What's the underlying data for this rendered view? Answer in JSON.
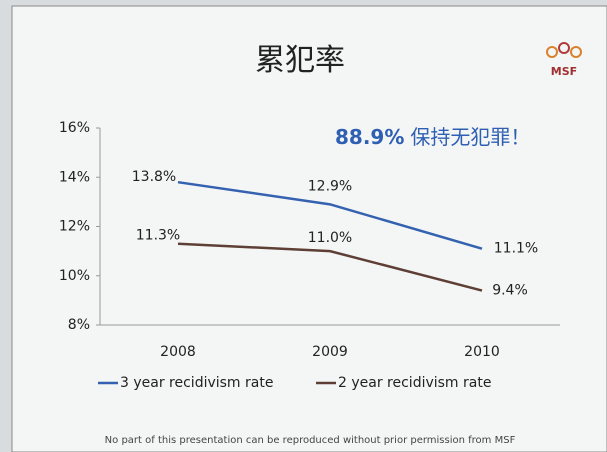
{
  "chart_data": {
    "type": "line",
    "title": "累犯率",
    "annotation": {
      "highlight": "88.9%",
      "text": "保持无犯罪！"
    },
    "logo": "MSF",
    "footer": "No part of this presentation can be reproduced without prior permission from MSF",
    "categories": [
      "2008",
      "2009",
      "2010"
    ],
    "series": [
      {
        "name": "3 year recidivism rate",
        "color": "#3462b0",
        "values": [
          13.8,
          12.9,
          11.1
        ],
        "value_labels": [
          "13.8%",
          "12.9%",
          "11.1%"
        ]
      },
      {
        "name": "2 year recidivism rate",
        "color": "#5e3f35",
        "values": [
          11.3,
          11.0,
          9.4
        ],
        "value_labels": [
          "11.3%",
          "11.0%",
          "9.4%"
        ]
      }
    ],
    "ylim": [
      8,
      16
    ],
    "yticks": [
      {
        "value": 8,
        "label": "8%"
      },
      {
        "value": 10,
        "label": "10%"
      },
      {
        "value": 12,
        "label": "12%"
      },
      {
        "value": 14,
        "label": "14%"
      },
      {
        "value": 16,
        "label": "16%"
      }
    ],
    "grid": false,
    "legend": "bottom"
  }
}
